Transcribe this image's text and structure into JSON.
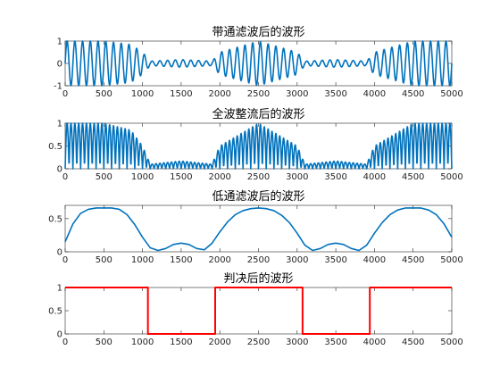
{
  "chart_data": [
    {
      "type": "line",
      "title": "带通滤波后的波形",
      "xlabel": "",
      "ylabel": "",
      "xlim": [
        0,
        5000
      ],
      "ylim": [
        -1,
        1
      ],
      "xticks": [
        0,
        500,
        1000,
        1500,
        2000,
        2500,
        3000,
        3500,
        4000,
        4500,
        5000
      ],
      "yticks": [
        -1,
        0,
        1
      ],
      "ytick_labels": [
        "-1",
        "0",
        "1"
      ],
      "color": "#0072BD",
      "carrier_period": 100,
      "series": [
        {
          "envelope_x": [
            0,
            500,
            850,
            1000,
            1100,
            1500,
            1900,
            2000,
            2500,
            3000,
            3100,
            3500,
            3900,
            4000,
            4500,
            5000
          ],
          "envelope_y": [
            1.0,
            1.0,
            0.85,
            0.5,
            0.1,
            0.17,
            0.1,
            0.5,
            1.0,
            0.5,
            0.1,
            0.17,
            0.1,
            0.5,
            1.0,
            1.0
          ]
        }
      ]
    },
    {
      "type": "line",
      "title": "全波整流后的波形",
      "xlabel": "",
      "ylabel": "",
      "xlim": [
        0,
        5000
      ],
      "ylim": [
        0,
        1
      ],
      "xticks": [
        0,
        500,
        1000,
        1500,
        2000,
        2500,
        3000,
        3500,
        4000,
        4500,
        5000
      ],
      "yticks": [
        0,
        0.5,
        1
      ],
      "ytick_labels": [
        "0",
        "0.5",
        "1"
      ],
      "color": "#0072BD",
      "carrier_period": 100,
      "series": [
        {
          "envelope_x": [
            0,
            500,
            850,
            1000,
            1100,
            1500,
            1900,
            2000,
            2500,
            3000,
            3100,
            3500,
            3900,
            4000,
            4500,
            5000
          ],
          "envelope_y": [
            1.0,
            1.0,
            0.85,
            0.5,
            0.1,
            0.17,
            0.1,
            0.5,
            1.0,
            0.5,
            0.1,
            0.17,
            0.1,
            0.5,
            1.0,
            1.0
          ]
        }
      ]
    },
    {
      "type": "line",
      "title": "低通滤波后的波形",
      "xlabel": "",
      "ylabel": "",
      "xlim": [
        0,
        5000
      ],
      "ylim": [
        0,
        0.7
      ],
      "xticks": [
        0,
        500,
        1000,
        1500,
        2000,
        2500,
        3000,
        3500,
        4000,
        4500,
        5000
      ],
      "yticks": [
        0,
        0.5
      ],
      "ytick_labels": [
        "0",
        "0.5"
      ],
      "color": "#0072BD",
      "series": [
        {
          "x": [
            0,
            100,
            200,
            300,
            400,
            500,
            600,
            700,
            800,
            900,
            1000,
            1100,
            1200,
            1300,
            1400,
            1500,
            1600,
            1700,
            1800,
            1900,
            2000,
            2100,
            2200,
            2300,
            2400,
            2500,
            2600,
            2700,
            2800,
            2900,
            3000,
            3100,
            3200,
            3300,
            3400,
            3500,
            3600,
            3700,
            3800,
            3900,
            4000,
            4100,
            4200,
            4300,
            4400,
            4500,
            4600,
            4700,
            4800,
            4900,
            5000
          ],
          "y": [
            0.15,
            0.42,
            0.58,
            0.64,
            0.66,
            0.66,
            0.66,
            0.64,
            0.56,
            0.41,
            0.22,
            0.06,
            0.02,
            0.05,
            0.11,
            0.13,
            0.11,
            0.05,
            0.03,
            0.13,
            0.3,
            0.45,
            0.56,
            0.62,
            0.65,
            0.66,
            0.65,
            0.62,
            0.55,
            0.44,
            0.28,
            0.1,
            0.02,
            0.05,
            0.11,
            0.13,
            0.11,
            0.05,
            0.02,
            0.1,
            0.28,
            0.44,
            0.56,
            0.63,
            0.66,
            0.66,
            0.66,
            0.63,
            0.56,
            0.42,
            0.22
          ]
        }
      ]
    },
    {
      "type": "line",
      "title": "判决后的波形",
      "xlabel": "",
      "ylabel": "",
      "xlim": [
        0,
        5000
      ],
      "ylim": [
        0,
        1
      ],
      "xticks": [
        0,
        500,
        1000,
        1500,
        2000,
        2500,
        3000,
        3500,
        4000,
        4500,
        5000
      ],
      "yticks": [
        0,
        0.5,
        1
      ],
      "ytick_labels": [
        "0",
        "0.5",
        "1"
      ],
      "color": "#FF0000",
      "series": [
        {
          "x": [
            0,
            1070,
            1070,
            1940,
            1940,
            3070,
            3070,
            3940,
            3940,
            5000
          ],
          "y": [
            1,
            1,
            0,
            0,
            1,
            1,
            0,
            0,
            1,
            1
          ]
        }
      ]
    }
  ]
}
